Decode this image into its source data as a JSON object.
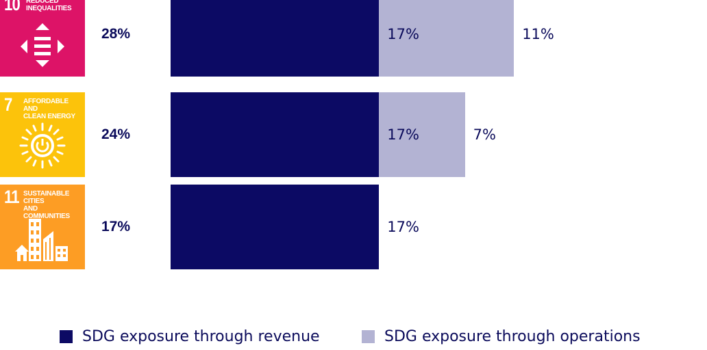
{
  "colors": {
    "revenue": "#0c0a64",
    "operations": "#b3b3d3",
    "text": "#0a0a5a"
  },
  "chart_data": {
    "type": "bar",
    "orientation": "horizontal",
    "stacked": true,
    "title": "",
    "xlabel": "",
    "ylabel": "",
    "categories": [
      "Reduced inequalities",
      "Affordable and clean energy",
      "Sustainable cities and communities"
    ],
    "sdg_numbers": [
      "10",
      "7",
      "11"
    ],
    "totals": [
      "28%",
      "24%",
      "17%"
    ],
    "series": [
      {
        "name": "SDG exposure through revenue",
        "values": [
          17,
          17,
          17
        ],
        "labels": [
          "17%",
          "17%",
          "17%"
        ]
      },
      {
        "name": "SDG exposure through operations",
        "values": [
          11,
          7,
          0
        ],
        "labels": [
          "11%",
          "7%",
          ""
        ]
      }
    ],
    "xlim": [
      0,
      30
    ],
    "grid": false,
    "legend_position": "bottom"
  },
  "icons": [
    {
      "number": "10",
      "title": "REDUCED\nINEQUALITIES",
      "color": "#dd1367",
      "glyph": "reduced-inequalities-icon"
    },
    {
      "number": "7",
      "title": "AFFORDABLE AND\nCLEAN ENERGY",
      "color": "#fcc30b",
      "glyph": "clean-energy-sun-icon"
    },
    {
      "number": "11",
      "title": "SUSTAINABLE CITIES\nAND COMMUNITIES",
      "color": "#fd9d24",
      "glyph": "sustainable-cities-buildings-icon"
    }
  ]
}
